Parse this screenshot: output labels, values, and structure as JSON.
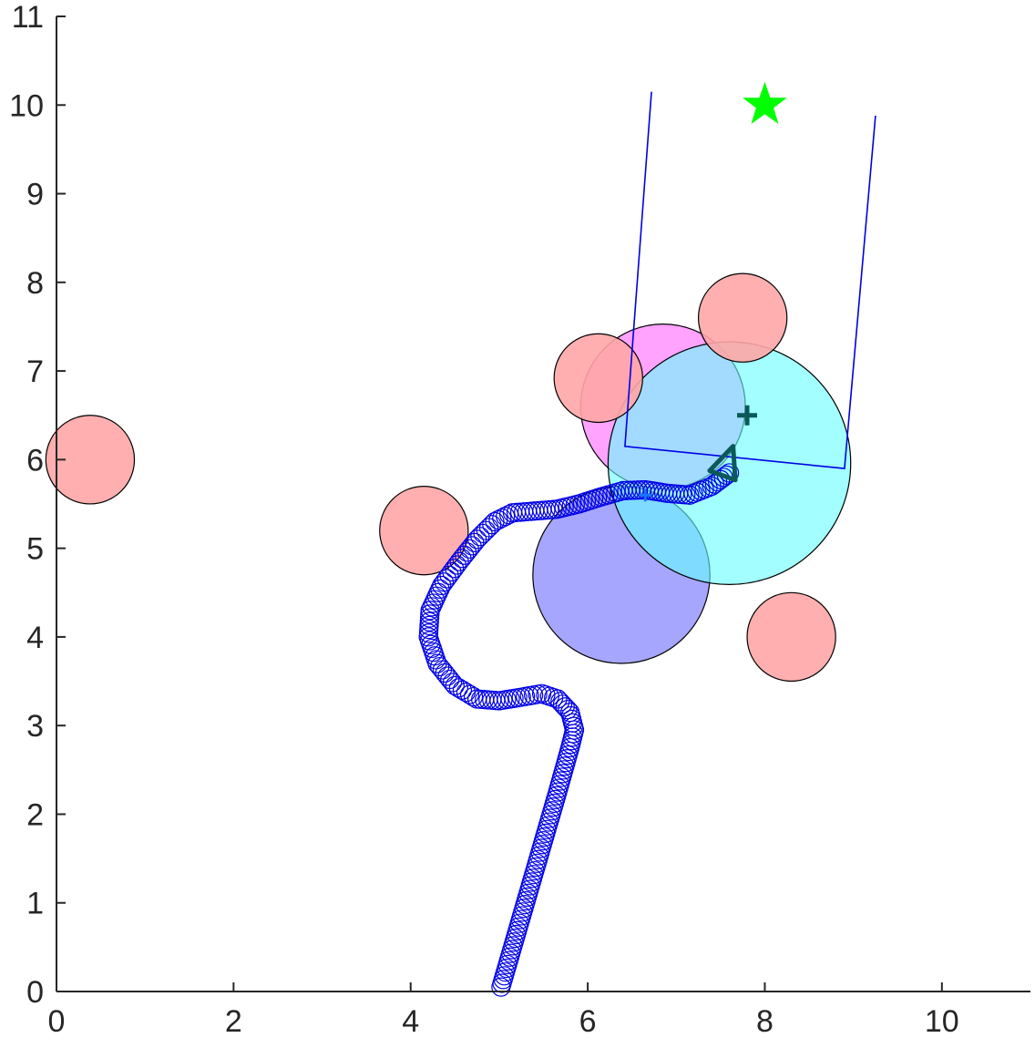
{
  "chart_data": {
    "type": "scatter",
    "title": "",
    "xlabel": "",
    "ylabel": "",
    "xlim": [
      0,
      11
    ],
    "ylim": [
      0,
      11
    ],
    "x_ticks": [
      0,
      2,
      4,
      6,
      8,
      10
    ],
    "y_ticks": [
      0,
      1,
      2,
      3,
      4,
      5,
      6,
      7,
      8,
      9,
      10,
      11
    ],
    "x_tick_labels": [
      "0",
      "2",
      "4",
      "6",
      "8",
      "10"
    ],
    "y_tick_labels": [
      "0",
      "1",
      "2",
      "3",
      "4",
      "5",
      "6",
      "7",
      "8",
      "9",
      "10",
      "11"
    ],
    "grid": false,
    "obstacles": [
      {
        "cx": 0.38,
        "cy": 6.0,
        "r": 0.5,
        "fill": "#ffa6a6"
      },
      {
        "cx": 4.15,
        "cy": 5.2,
        "r": 0.5,
        "fill": "#ffa6a6"
      },
      {
        "cx": 6.12,
        "cy": 6.92,
        "r": 0.5,
        "fill": "#ffa6a6"
      },
      {
        "cx": 7.75,
        "cy": 7.6,
        "r": 0.5,
        "fill": "#ffa6a6"
      },
      {
        "cx": 8.3,
        "cy": 4.0,
        "r": 0.5,
        "fill": "#ffa6a6"
      }
    ],
    "regions": [
      {
        "cx": 6.38,
        "cy": 4.7,
        "r": 1.0,
        "fill": "#a6a6ff",
        "opacity": 1.0
      },
      {
        "cx": 6.85,
        "cy": 6.6,
        "r": 0.93,
        "fill": "#ff66ff",
        "opacity": 0.6
      },
      {
        "cx": 7.6,
        "cy": 5.96,
        "r": 1.37,
        "fill": "#66ffff",
        "opacity": 0.6
      }
    ],
    "trajectory": {
      "color": "#0000e6",
      "points": [
        [
          5.02,
          0.05
        ],
        [
          5.18,
          0.6
        ],
        [
          5.34,
          1.15
        ],
        [
          5.5,
          1.7
        ],
        [
          5.66,
          2.25
        ],
        [
          5.8,
          2.75
        ],
        [
          5.85,
          2.95
        ],
        [
          5.8,
          3.15
        ],
        [
          5.66,
          3.3
        ],
        [
          5.48,
          3.36
        ],
        [
          5.25,
          3.32
        ],
        [
          5.0,
          3.28
        ],
        [
          4.75,
          3.3
        ],
        [
          4.5,
          3.45
        ],
        [
          4.3,
          3.7
        ],
        [
          4.2,
          4.0
        ],
        [
          4.22,
          4.3
        ],
        [
          4.35,
          4.58
        ],
        [
          4.55,
          4.85
        ],
        [
          4.75,
          5.1
        ],
        [
          4.95,
          5.3
        ],
        [
          5.15,
          5.4
        ],
        [
          5.4,
          5.42
        ],
        [
          5.65,
          5.44
        ],
        [
          5.9,
          5.5
        ],
        [
          6.15,
          5.58
        ],
        [
          6.4,
          5.65
        ],
        [
          6.65,
          5.66
        ],
        [
          6.9,
          5.62
        ],
        [
          7.15,
          5.6
        ],
        [
          7.4,
          5.7
        ],
        [
          7.6,
          5.85
        ]
      ]
    },
    "current_marker": {
      "x": 6.65,
      "y": 5.6,
      "color": "#1a75ff"
    },
    "robot": {
      "x": 7.55,
      "y": 5.9,
      "heading_deg": 70,
      "color": "#0b5959"
    },
    "target_cross": {
      "x": 7.8,
      "y": 6.5,
      "color": "#0b5959"
    },
    "goal": {
      "x": 8.0,
      "y": 10.0,
      "color": "#00ff00"
    },
    "corridor": {
      "color": "#0000e6",
      "left_top": [
        6.72,
        10.15
      ],
      "left_bottom": [
        6.42,
        6.15
      ],
      "right_bottom": [
        8.9,
        5.9
      ],
      "right_top": [
        9.25,
        9.88
      ]
    }
  }
}
